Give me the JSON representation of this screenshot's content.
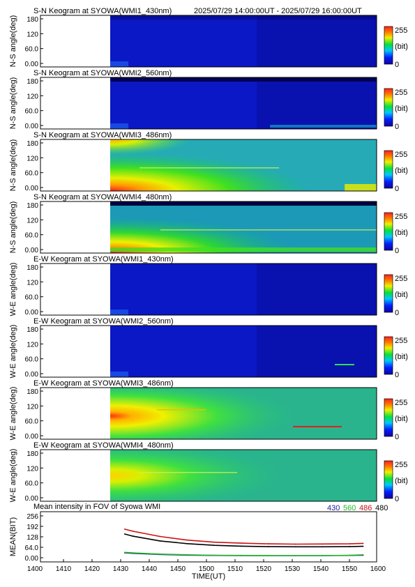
{
  "header": {
    "time_range": "2025/07/29 14:00:00UT - 2025/07/29 16:00:00UT"
  },
  "colorbar": {
    "max_label": "255",
    "unit_label": "(bit)",
    "min_label": "0"
  },
  "y_ticks": [
    "180",
    "120",
    "60.0",
    "0.00"
  ],
  "keograms": [
    {
      "title": "S-N Keogram at SYOWA(WMI1_430nm)",
      "ylabel": "N-S angle(deg)"
    },
    {
      "title": "S-N Keogram at SYOWA(WMI2_560nm)",
      "ylabel": "N-S angle(deg)"
    },
    {
      "title": "S-N Keogram at SYOWA(WMI3_486nm)",
      "ylabel": "N-S angle(deg)"
    },
    {
      "title": "S-N Keogram at SYOWA(WMI4_480nm)",
      "ylabel": "N-S angle(deg)"
    },
    {
      "title": "E-W Keogram at SYOWA(WMI1_430nm)",
      "ylabel": "W-E angle(deg)"
    },
    {
      "title": "E-W Keogram at SYOWA(WMI2_560nm)",
      "ylabel": "W-E angle(deg)"
    },
    {
      "title": "E-W Keogram at SYOWA(WMI3_486nm)",
      "ylabel": "W-E angle(deg)"
    },
    {
      "title": "E-W Keogram at SYOWA(WMI4_480nm)",
      "ylabel": "W-E angle(deg)"
    }
  ],
  "chart_data": {
    "type": "line",
    "title": "Mean intensity in FOV of Syowa WMI",
    "xlabel": "TIME(UT)",
    "ylabel": "MEAN(BIT)",
    "x_ticks": [
      "1400",
      "1410",
      "1420",
      "1430",
      "1440",
      "1450",
      "1500",
      "1510",
      "1520",
      "1530",
      "1540",
      "1550",
      "1600"
    ],
    "y_ticks": [
      "256",
      "192",
      "128",
      "64.0",
      "0.00"
    ],
    "ylim": [
      0,
      256
    ],
    "x": [
      "14:27",
      "14:30",
      "14:40",
      "14:50",
      "15:00",
      "15:10",
      "15:20",
      "15:30",
      "15:40",
      "15:50",
      "15:55"
    ],
    "series": [
      {
        "name": "430",
        "color": "#1a1aa0",
        "values": [
          30,
          27,
          20,
          16,
          14,
          13,
          13,
          13,
          13,
          14,
          15
        ]
      },
      {
        "name": "560",
        "color": "#22bb22",
        "values": [
          33,
          30,
          22,
          18,
          15,
          14,
          13,
          13,
          13,
          15,
          18
        ]
      },
      {
        "name": "486",
        "color": "#cc1111",
        "values": [
          175,
          162,
          130,
          108,
          95,
          89,
          85,
          83,
          84,
          85,
          88
        ]
      },
      {
        "name": "480",
        "color": "#000000",
        "values": [
          145,
          132,
          103,
          86,
          76,
          71,
          68,
          67,
          67,
          68,
          70
        ]
      }
    ]
  }
}
